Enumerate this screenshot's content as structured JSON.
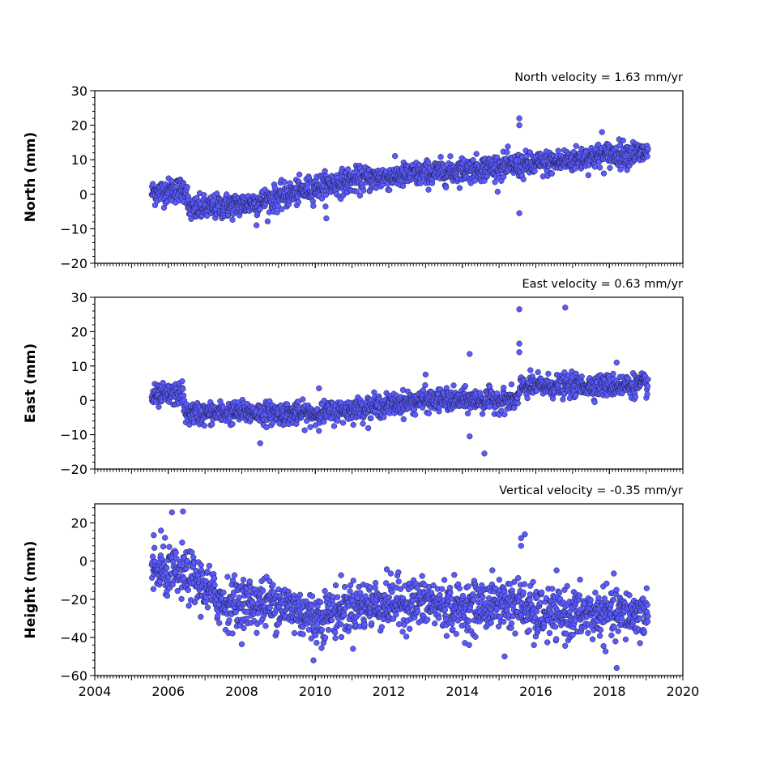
{
  "chart_data": [
    {
      "type": "scatter",
      "title": "North velocity = 1.63 mm/yr",
      "ylabel": "North (mm)",
      "xlim": [
        2004,
        2020
      ],
      "ylim": [
        -20,
        30
      ],
      "yticks": [
        -20,
        -10,
        0,
        10,
        20,
        30
      ],
      "color": "#5a5aff",
      "trend": [
        {
          "t": 2005.6,
          "v": 0.5
        },
        {
          "t": 2006.5,
          "v": 1.5
        },
        {
          "t": 2006.55,
          "v": -4.5
        },
        {
          "t": 2008.0,
          "v": -3.0
        },
        {
          "t": 2009.0,
          "v": -1.0
        },
        {
          "t": 2010.0,
          "v": 2.0
        },
        {
          "t": 2011.0,
          "v": 4.0
        },
        {
          "t": 2012.0,
          "v": 5.0
        },
        {
          "t": 2013.0,
          "v": 6.0
        },
        {
          "t": 2014.0,
          "v": 7.0
        },
        {
          "t": 2015.0,
          "v": 8.0
        },
        {
          "t": 2015.9,
          "v": 8.5
        },
        {
          "t": 2017.0,
          "v": 10.0
        },
        {
          "t": 2018.0,
          "v": 11.5
        },
        {
          "t": 2019.05,
          "v": 12.0
        }
      ],
      "scatter_sd": 1.8,
      "outliers": [
        [
          2015.55,
          22
        ],
        [
          2015.55,
          20
        ],
        [
          2015.55,
          -5.5
        ],
        [
          2017.8,
          18
        ],
        [
          2010.3,
          -7
        ],
        [
          2008.4,
          -9
        ]
      ]
    },
    {
      "type": "scatter",
      "title": "East velocity = 0.63 mm/yr",
      "ylabel": "East (mm)",
      "xlim": [
        2004,
        2020
      ],
      "ylim": [
        -20,
        30
      ],
      "yticks": [
        -20,
        -10,
        0,
        10,
        20,
        30
      ],
      "color": "#5a5aff",
      "trend": [
        {
          "t": 2005.6,
          "v": 1.0
        },
        {
          "t": 2006.4,
          "v": 2.0
        },
        {
          "t": 2006.45,
          "v": -4.0
        },
        {
          "t": 2008.0,
          "v": -3.5
        },
        {
          "t": 2010.0,
          "v": -4.0
        },
        {
          "t": 2011.5,
          "v": -2.0
        },
        {
          "t": 2013.0,
          "v": 0.0
        },
        {
          "t": 2015.5,
          "v": 0.0
        },
        {
          "t": 2015.6,
          "v": 4.0
        },
        {
          "t": 2019.05,
          "v": 4.5
        }
      ],
      "scatter_sd": 1.6,
      "outliers": [
        [
          2015.55,
          26.5
        ],
        [
          2016.8,
          27
        ],
        [
          2015.55,
          16.5
        ],
        [
          2015.55,
          14
        ],
        [
          2014.2,
          13.5
        ],
        [
          2014.2,
          -10.5
        ],
        [
          2014.6,
          -15.5
        ],
        [
          2008.5,
          -12.5
        ],
        [
          2013.0,
          7.5
        ],
        [
          2018.2,
          11
        ],
        [
          2010.1,
          3.5
        ]
      ]
    },
    {
      "type": "scatter",
      "title": "Vertical velocity = -0.35 mm/yr",
      "ylabel": "Height (mm)",
      "xlim": [
        2004,
        2020
      ],
      "ylim": [
        -60,
        30
      ],
      "yticks": [
        -60,
        -40,
        -20,
        0,
        20
      ],
      "color": "#5a5aff",
      "trend": [
        {
          "t": 2005.6,
          "v": -5.0
        },
        {
          "t": 2006.6,
          "v": -8.0
        },
        {
          "t": 2007.5,
          "v": -22.0
        },
        {
          "t": 2009.0,
          "v": -22.0
        },
        {
          "t": 2010.0,
          "v": -30.0
        },
        {
          "t": 2011.0,
          "v": -24.0
        },
        {
          "t": 2012.0,
          "v": -22.0
        },
        {
          "t": 2013.0,
          "v": -22.0
        },
        {
          "t": 2014.0,
          "v": -25.0
        },
        {
          "t": 2015.0,
          "v": -22.0
        },
        {
          "t": 2015.5,
          "v": -22.0
        },
        {
          "t": 2016.0,
          "v": -28.0
        },
        {
          "t": 2017.0,
          "v": -28.0
        },
        {
          "t": 2018.0,
          "v": -28.0
        },
        {
          "t": 2019.05,
          "v": -28.0
        }
      ],
      "scatter_sd": 6.5,
      "outliers": [
        [
          2006.1,
          25.5
        ],
        [
          2006.4,
          26
        ],
        [
          2005.8,
          16
        ],
        [
          2015.7,
          14
        ],
        [
          2015.6,
          12
        ],
        [
          2015.6,
          8
        ],
        [
          2018.2,
          -56
        ],
        [
          2015.15,
          -50
        ],
        [
          2015.95,
          -44
        ],
        [
          2009.95,
          -52
        ]
      ]
    }
  ],
  "xaxis": {
    "ticks": [
      2004,
      2006,
      2008,
      2010,
      2012,
      2014,
      2016,
      2018,
      2020
    ],
    "data_start": 2005.55,
    "data_end": 2019.05
  }
}
